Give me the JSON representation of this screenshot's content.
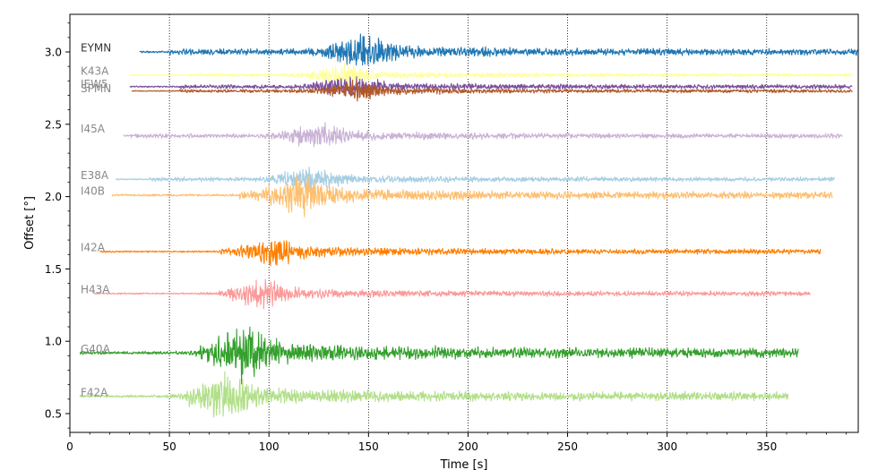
{
  "chart_data": {
    "type": "line",
    "title": "",
    "xlabel": "Time [s]",
    "ylabel": "Offset [°]",
    "xlim": [
      0,
      396
    ],
    "ylim": [
      0.37,
      3.26
    ],
    "x_ticks": [
      0,
      50,
      100,
      150,
      200,
      250,
      300,
      350
    ],
    "x_tick_labels": [
      "0",
      "50",
      "100",
      "150",
      "200",
      "250",
      "300",
      "350"
    ],
    "y_ticks": [
      0.5,
      1.0,
      1.5,
      2.0,
      2.5,
      3.0
    ],
    "y_tick_labels": [
      "0.5",
      "1.0",
      "1.5",
      "2.0",
      "2.5",
      "3.0"
    ],
    "vertical_gridlines": [
      50,
      100,
      150,
      200,
      250,
      300,
      350
    ],
    "series": [
      {
        "name": "EYMN",
        "offset": 3.0,
        "t_start": 35,
        "t_end": 396,
        "onset": 50,
        "peak": 145,
        "amplitude": 0.08,
        "color": "#1f77b4",
        "label_color": "#333333",
        "label_offset": 3.03
      },
      {
        "name": "K43A",
        "offset": 2.84,
        "t_start": 30,
        "t_end": 393,
        "onset": 60,
        "peak": 135,
        "amplitude": 0.045,
        "color": "#ffff99",
        "label_color": "#888888",
        "label_offset": 2.87
      },
      {
        "name": "IEW5",
        "offset": 2.76,
        "t_start": 30,
        "t_end": 393,
        "onset": 55,
        "peak": 138,
        "amplitude": 0.055,
        "color": "#7b4f9d",
        "label_color": "#888888",
        "label_offset": 2.78
      },
      {
        "name": "SPMN",
        "offset": 2.73,
        "t_start": 31,
        "t_end": 393,
        "onset": 55,
        "peak": 140,
        "amplitude": 0.045,
        "color": "#b15928",
        "label_color": "#888888",
        "label_offset": 2.75
      },
      {
        "name": "I45A",
        "offset": 2.42,
        "t_start": 27,
        "t_end": 388,
        "onset": 30,
        "peak": 122,
        "amplitude": 0.06,
        "color": "#cab2d6",
        "label_color": "#888888",
        "label_offset": 2.47
      },
      {
        "name": "E38A",
        "offset": 2.12,
        "t_start": 23,
        "t_end": 384,
        "onset": 40,
        "peak": 118,
        "amplitude": 0.055,
        "color": "#a6cee3",
        "label_color": "#888888",
        "label_offset": 2.15
      },
      {
        "name": "I40B",
        "offset": 2.01,
        "t_start": 21,
        "t_end": 383,
        "onset": 85,
        "peak": 113,
        "amplitude": 0.09,
        "color": "#fdbf6f",
        "label_color": "#888888",
        "label_offset": 2.04
      },
      {
        "name": "I42A",
        "offset": 1.62,
        "t_start": 15,
        "t_end": 377,
        "onset": 76,
        "peak": 100,
        "amplitude": 0.065,
        "color": "#ff7f00",
        "label_color": "#888888",
        "label_offset": 1.65
      },
      {
        "name": "H43A",
        "offset": 1.33,
        "t_start": 12,
        "t_end": 372,
        "onset": 80,
        "peak": 93,
        "amplitude": 0.065,
        "color": "#fb9a99",
        "label_color": "#888888",
        "label_offset": 1.36
      },
      {
        "name": "G40A",
        "offset": 0.92,
        "t_start": 5,
        "t_end": 366,
        "onset": 65,
        "peak": 86,
        "amplitude": 0.13,
        "color": "#33a02c",
        "label_color": "#888888",
        "label_offset": 0.95
      },
      {
        "name": "F42A",
        "offset": 0.62,
        "t_start": 5,
        "t_end": 361,
        "onset": 60,
        "peak": 75,
        "amplitude": 0.11,
        "color": "#b2df8a",
        "label_color": "#888888",
        "label_offset": 0.65
      }
    ]
  }
}
